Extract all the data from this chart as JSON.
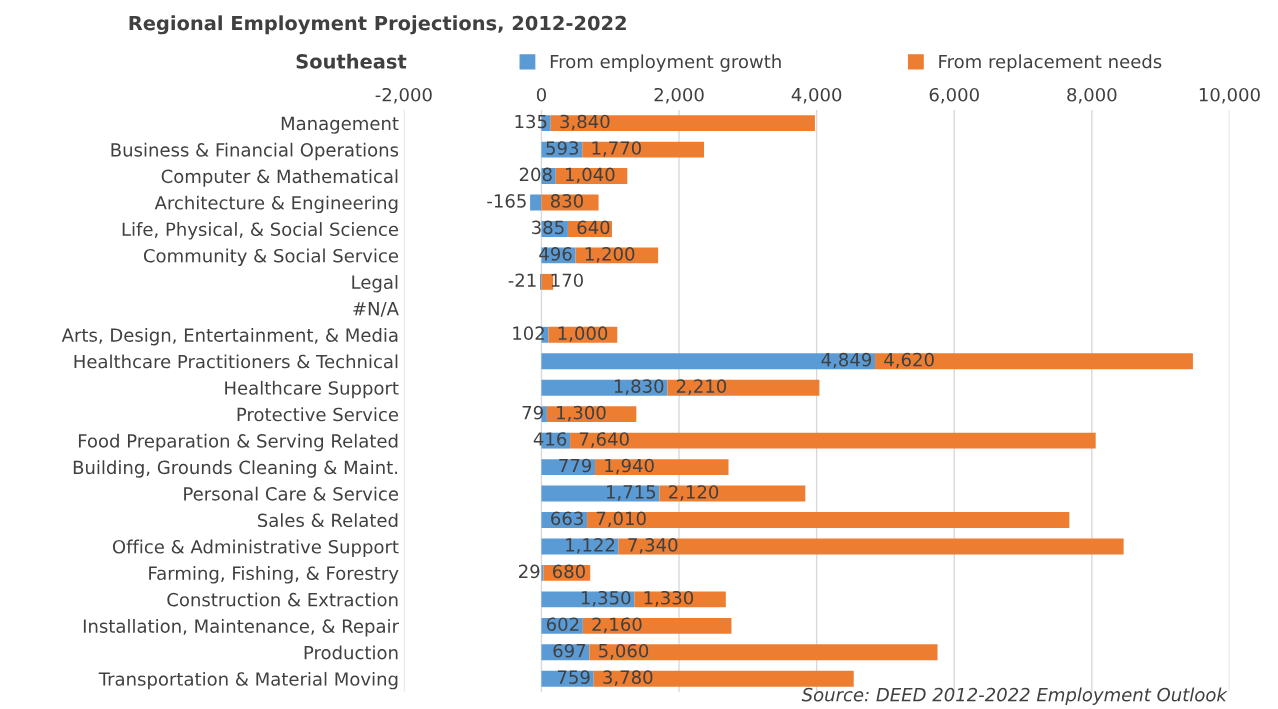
{
  "chart_data": {
    "type": "bar",
    "orientation": "horizontal",
    "stacked": true,
    "title": "Regional Employment Projections, 2012-2022",
    "subtitle": "Southeast",
    "categories": [
      "Management",
      "Business & Financial Operations",
      "Computer & Mathematical",
      "Architecture & Engineering",
      "Life, Physical, & Social Science",
      "Community & Social Service",
      "Legal",
      "#N/A",
      "Arts, Design, Entertainment, & Media",
      "Healthcare Practitioners & Technical",
      "Healthcare Support",
      "Protective Service",
      "Food Preparation & Serving Related",
      "Building, Grounds Cleaning & Maint.",
      "Personal Care & Service",
      "Sales & Related",
      "Office & Administrative Support",
      "Farming, Fishing, & Forestry",
      "Construction & Extraction",
      "Installation, Maintenance, & Repair",
      "Production",
      "Transportation & Material Moving"
    ],
    "series": [
      {
        "name": "From employment growth",
        "color": "#5b9bd5",
        "values": [
          135,
          593,
          208,
          -165,
          385,
          496,
          -21,
          null,
          102,
          4849,
          1830,
          79,
          416,
          779,
          1715,
          663,
          1122,
          29,
          1350,
          602,
          697,
          759
        ],
        "value_labels": [
          "135",
          "593",
          "208",
          "-165",
          "385",
          "496",
          "-21",
          null,
          "102",
          "4,849",
          "1,830",
          "79",
          "416",
          "779",
          "1,715",
          "663",
          "1,122",
          "29",
          "1,350",
          "602",
          "697",
          "759"
        ]
      },
      {
        "name": "From replacement needs",
        "color": "#ed7d31",
        "values": [
          3840,
          1770,
          1040,
          830,
          640,
          1200,
          170,
          null,
          1000,
          4620,
          2210,
          1300,
          7640,
          1940,
          2120,
          7010,
          7340,
          680,
          1330,
          2160,
          5060,
          3780
        ],
        "value_labels": [
          "3,840",
          "1,770",
          "1,040",
          "830",
          "640",
          "1,200",
          "170",
          null,
          "1,000",
          "4,620",
          "2,210",
          "1,300",
          "7,640",
          "1,940",
          "2,120",
          "7,010",
          "7,340",
          "680",
          "1,330",
          "2,160",
          "5,060",
          "3,780"
        ]
      }
    ],
    "xlim": [
      -2000,
      10000
    ],
    "xticks": [
      {
        "value": -2000,
        "label": "-2,000"
      },
      0,
      {
        "value": 2000,
        "label": "2,000"
      },
      {
        "value": 4000,
        "label": "4,000"
      },
      {
        "value": 6000,
        "label": "6,000"
      },
      {
        "value": 8000,
        "label": "8,000"
      },
      {
        "value": 10000,
        "label": "10,000"
      }
    ],
    "grid": "x",
    "legend": "top",
    "annotations": [
      "Source: DEED 2012-2022 Employment Outlook"
    ]
  }
}
